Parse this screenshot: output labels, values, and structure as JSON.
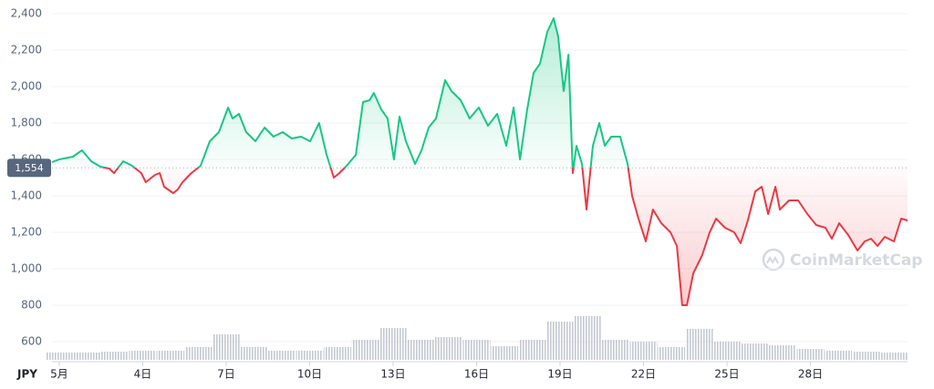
{
  "chart_data": {
    "type": "line",
    "currency": "JPY",
    "watermark": "CoinMarketCap",
    "x": [
      0.74,
      1,
      1.49,
      1.82,
      2.15,
      2.48,
      2.8,
      2.97,
      3.3,
      3.62,
      3.95,
      4.11,
      4.44,
      4.61,
      4.77,
      5.1,
      5.26,
      5.43,
      5.75,
      6.08,
      6.41,
      6.74,
      7.07,
      7.23,
      7.46,
      7.72,
      8.05,
      8.38,
      8.7,
      9.03,
      9.36,
      9.69,
      10.02,
      10.34,
      10.61,
      10.87,
      11.07,
      11.33,
      11.66,
      11.92,
      12.15,
      12.31,
      12.57,
      12.8,
      13.03,
      13.23,
      13.46,
      13.79,
      14.02,
      14.28,
      14.54,
      14.87,
      15.1,
      15.43,
      15.75,
      16.08,
      16.41,
      16.74,
      17.07,
      17.33,
      17.56,
      17.82,
      18.05,
      18.28,
      18.54,
      18.77,
      18.93,
      19.13,
      19.3,
      19.46,
      19.59,
      19.79,
      19.95,
      20.18,
      20.41,
      20.61,
      20.84,
      21.16,
      21.43,
      21.59,
      21.82,
      22.08,
      22.34,
      22.64,
      22.97,
      23.2,
      23.39,
      23.56,
      23.79,
      24.11,
      24.38,
      24.61,
      24.93,
      25.26,
      25.49,
      25.75,
      26.02,
      26.25,
      26.48,
      26.74,
      26.9,
      27.23,
      27.56,
      27.89,
      28.21,
      28.54,
      28.77,
      29.03,
      29.36,
      29.69,
      29.95,
      30.18,
      30.41,
      30.67,
      31,
      31.26,
      31.49
    ],
    "values": [
      1585,
      1600,
      1615,
      1650,
      1590,
      1560,
      1550,
      1525,
      1590,
      1565,
      1525,
      1475,
      1515,
      1525,
      1450,
      1415,
      1435,
      1475,
      1525,
      1565,
      1700,
      1750,
      1885,
      1825,
      1850,
      1750,
      1700,
      1775,
      1725,
      1750,
      1715,
      1725,
      1700,
      1800,
      1625,
      1500,
      1525,
      1565,
      1625,
      1915,
      1925,
      1965,
      1875,
      1825,
      1600,
      1835,
      1700,
      1575,
      1650,
      1775,
      1825,
      2035,
      1975,
      1925,
      1825,
      1885,
      1785,
      1850,
      1675,
      1885,
      1600,
      1875,
      2075,
      2125,
      2300,
      2375,
      2275,
      1975,
      2175,
      1525,
      1675,
      1575,
      1325,
      1675,
      1800,
      1675,
      1725,
      1725,
      1575,
      1400,
      1275,
      1150,
      1325,
      1250,
      1200,
      1125,
      800,
      800,
      975,
      1075,
      1200,
      1275,
      1225,
      1200,
      1140,
      1265,
      1425,
      1450,
      1300,
      1450,
      1325,
      1375,
      1375,
      1300,
      1240,
      1225,
      1165,
      1250,
      1185,
      1100,
      1150,
      1165,
      1125,
      1175,
      1150,
      1275,
      1265
    ],
    "colors": {
      "up": "#16c784",
      "down": "#ea3943"
    },
    "baseline": {
      "value": 1554,
      "label": "1,554"
    },
    "xlim": [
      0.74,
      31.49
    ],
    "xticks": [
      {
        "value": 1,
        "label": "5月"
      },
      {
        "value": 4,
        "label": "4日"
      },
      {
        "value": 7,
        "label": "7日"
      },
      {
        "value": 10,
        "label": "10日"
      },
      {
        "value": 13,
        "label": "13日"
      },
      {
        "value": 16,
        "label": "16日"
      },
      {
        "value": 19,
        "label": "19日"
      },
      {
        "value": 22,
        "label": "22日"
      },
      {
        "value": 25,
        "label": "25日"
      },
      {
        "value": 28,
        "label": "28日"
      }
    ],
    "ylim": [
      520,
      2450
    ],
    "yticks": [
      600,
      800,
      {
        "value": 1000,
        "label": "1,000"
      },
      {
        "value": 1200,
        "label": "1,200"
      },
      {
        "value": 1400,
        "label": "1,400"
      },
      {
        "value": 1600,
        "label": "1,600"
      },
      {
        "value": 1800,
        "label": "1,800"
      },
      {
        "value": 2000,
        "label": "2,000"
      },
      {
        "value": 2200,
        "label": "2,200"
      },
      {
        "value": 2400,
        "label": "2,400"
      }
    ],
    "grid": true,
    "volume": {
      "color": "#c3c8d2",
      "ylim": [
        0,
        60
      ],
      "x": [
        1,
        2,
        3,
        4,
        5,
        6,
        7,
        8,
        9,
        10,
        11,
        12,
        13,
        14,
        15,
        16,
        17,
        18,
        19,
        20,
        21,
        22,
        23,
        24,
        25,
        26,
        27,
        28,
        29,
        30,
        31
      ],
      "values": [
        8,
        8,
        9,
        10,
        10,
        14,
        28,
        14,
        10,
        10,
        14,
        22,
        35,
        22,
        25,
        22,
        15,
        22,
        42,
        48,
        22,
        20,
        14,
        34,
        20,
        18,
        16,
        12,
        10,
        9,
        8
      ]
    }
  }
}
